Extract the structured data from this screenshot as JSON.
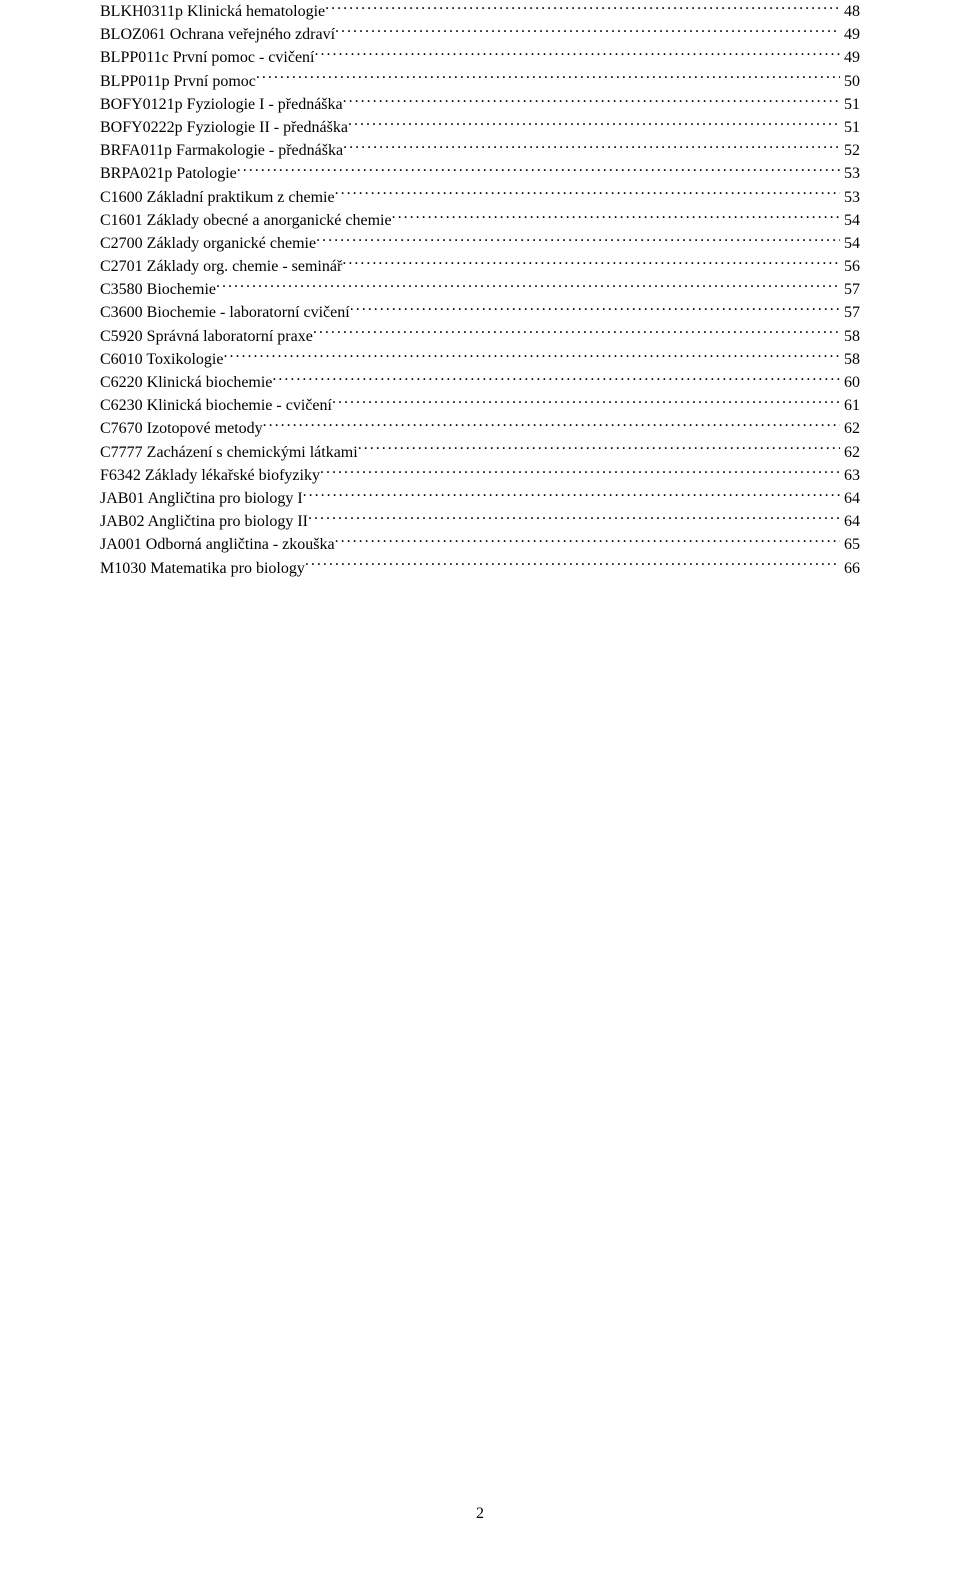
{
  "toc": {
    "font_family": "Times New Roman",
    "font_size_pt": 12,
    "text_color": "#000000",
    "background_color": "#ffffff",
    "entries": [
      {
        "label": "BLKH0311p Klinická hematologie",
        "page": "48"
      },
      {
        "label": "BLOZ061 Ochrana veřejného zdraví",
        "page": "49"
      },
      {
        "label": "BLPP011c První pomoc - cvičení",
        "page": "49"
      },
      {
        "label": "BLPP011p První pomoc",
        "page": "50"
      },
      {
        "label": "BOFY0121p Fyziologie I - přednáška",
        "page": "51"
      },
      {
        "label": "BOFY0222p Fyziologie II - přednáška",
        "page": "51"
      },
      {
        "label": "BRFA011p Farmakologie - přednáška",
        "page": "52"
      },
      {
        "label": "BRPA021p Patologie",
        "page": "53"
      },
      {
        "label": "C1600 Základní praktikum z chemie",
        "page": "53"
      },
      {
        "label": "C1601 Základy obecné a anorganické chemie",
        "page": "54"
      },
      {
        "label": "C2700 Základy organické chemie",
        "page": "54"
      },
      {
        "label": "C2701 Základy org. chemie - seminář",
        "page": "56"
      },
      {
        "label": "C3580 Biochemie",
        "page": "57"
      },
      {
        "label": "C3600 Biochemie - laboratorní cvičení",
        "page": "57"
      },
      {
        "label": "C5920 Správná laboratorní praxe",
        "page": "58"
      },
      {
        "label": "C6010 Toxikologie",
        "page": "58"
      },
      {
        "label": "C6220 Klinická biochemie",
        "page": "60"
      },
      {
        "label": "C6230 Klinická biochemie - cvičení",
        "page": "61"
      },
      {
        "label": "C7670 Izotopové metody",
        "page": "62"
      },
      {
        "label": "C7777 Zacházení s chemickými látkami",
        "page": "62"
      },
      {
        "label": "F6342 Základy lékařské biofyziky",
        "page": "63"
      },
      {
        "label": "JAB01 Angličtina pro biology I",
        "page": "64"
      },
      {
        "label": "JAB02 Angličtina pro biology II",
        "page": "64"
      },
      {
        "label": "JA001 Odborná angličtina - zkouška",
        "page": "65"
      },
      {
        "label": "M1030 Matematika pro biology",
        "page": "66"
      }
    ]
  },
  "footer": {
    "page_number": "2"
  }
}
